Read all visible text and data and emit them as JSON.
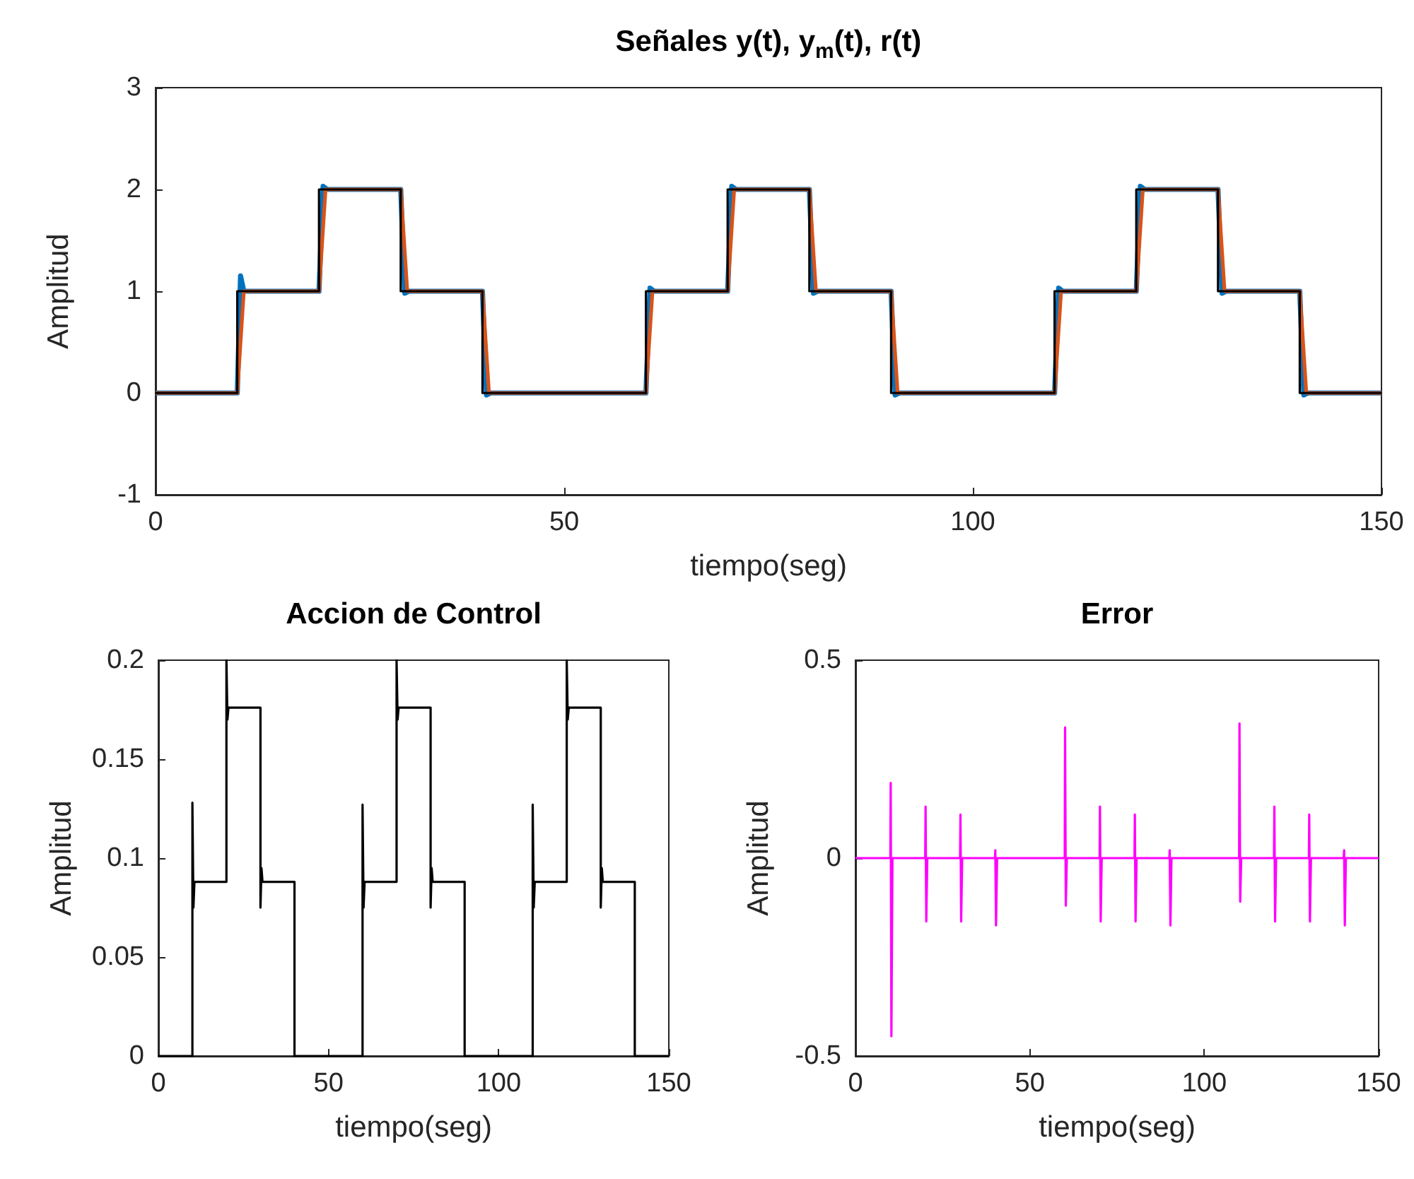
{
  "chart_data": [
    {
      "type": "line",
      "title": "Señales y(t), y$_{m}$(t), r(t)",
      "xlabel": "tiempo(seg)",
      "ylabel": "Amplitud",
      "xlim": [
        0,
        150
      ],
      "xticks": [
        0,
        50,
        100,
        150
      ],
      "ylim": [
        -1,
        3
      ],
      "yticks": [
        -1,
        0,
        1,
        2,
        3
      ],
      "grid": false,
      "marker": "none",
      "line_style": "solid",
      "series": [
        {
          "color": "#0072bd",
          "x": [
            0,
            10,
            10.4,
            10.8,
            20,
            20.5,
            21,
            30,
            30.5,
            31,
            40,
            40.5,
            41,
            60,
            60.5,
            61,
            70,
            70.5,
            71,
            80,
            80.5,
            81,
            90,
            90.5,
            91,
            110,
            110.5,
            111,
            120,
            120.5,
            121,
            130,
            130.5,
            131,
            140,
            140.5,
            141,
            150
          ],
          "values": [
            0,
            0,
            1.15,
            1,
            1,
            2.03,
            2,
            2,
            0.98,
            1,
            1,
            -0.02,
            0,
            0,
            1.03,
            1,
            1,
            2.03,
            2,
            2,
            0.98,
            1,
            1,
            -0.02,
            0,
            0,
            1.03,
            1,
            1,
            2.03,
            2,
            2,
            0.98,
            1,
            1,
            -0.02,
            0,
            0
          ]
        },
        {
          "color": "#d95319",
          "x": [
            0,
            10,
            10.8,
            20,
            20.8,
            30,
            30.8,
            40,
            40.8,
            60,
            60.8,
            70,
            70.8,
            80,
            80.8,
            90,
            90.8,
            110,
            110.8,
            120,
            120.8,
            130,
            130.8,
            140,
            140.8,
            150
          ],
          "values": [
            0,
            0,
            1,
            1,
            2,
            2,
            1,
            1,
            0,
            0,
            1,
            1,
            2,
            2,
            1,
            1,
            0,
            0,
            1,
            1,
            2,
            2,
            1,
            1,
            0,
            0
          ]
        },
        {
          "color": "#000000",
          "x": [
            0,
            10,
            10,
            20,
            20,
            30,
            30,
            40,
            40,
            60,
            60,
            70,
            70,
            80,
            80,
            90,
            90,
            110,
            110,
            120,
            120,
            130,
            130,
            140,
            140,
            150
          ],
          "values": [
            0,
            0,
            1,
            1,
            2,
            2,
            1,
            1,
            0,
            0,
            1,
            1,
            2,
            2,
            1,
            1,
            0,
            0,
            1,
            1,
            2,
            2,
            1,
            1,
            0,
            0
          ]
        }
      ]
    },
    {
      "type": "line",
      "title": "Accion de Control",
      "xlabel": "tiempo(seg)",
      "ylabel": "Amplitud",
      "xlim": [
        0,
        150
      ],
      "xticks": [
        0,
        50,
        100,
        150
      ],
      "ylim": [
        0,
        0.2
      ],
      "yticks": [
        0,
        0.05,
        0.1,
        0.15,
        0.2
      ],
      "grid": false,
      "marker": "none",
      "line_style": "solid",
      "series": [
        {
          "color": "#000000",
          "x": [
            0,
            10,
            10,
            10.3,
            10.6,
            20,
            20,
            20.3,
            20.6,
            30,
            30,
            30.3,
            30.6,
            40,
            40,
            60,
            60,
            60.3,
            60.6,
            70,
            70,
            70.3,
            70.6,
            80,
            80,
            80.3,
            80.6,
            90,
            90,
            110,
            110,
            110.3,
            110.6,
            120,
            120,
            120.3,
            120.6,
            130,
            130,
            130.3,
            130.6,
            140,
            140,
            150
          ],
          "values": [
            0,
            0,
            0.128,
            0.075,
            0.088,
            0.088,
            0.2,
            0.17,
            0.176,
            0.176,
            0.075,
            0.095,
            0.088,
            0.088,
            0,
            0,
            0.127,
            0.075,
            0.088,
            0.088,
            0.2,
            0.17,
            0.176,
            0.176,
            0.075,
            0.095,
            0.088,
            0.088,
            0,
            0,
            0.127,
            0.075,
            0.088,
            0.088,
            0.2,
            0.17,
            0.176,
            0.176,
            0.075,
            0.095,
            0.088,
            0.088,
            0,
            0
          ]
        }
      ]
    },
    {
      "type": "line",
      "title": "Error",
      "xlabel": "tiempo(seg)",
      "ylabel": "Amplitud",
      "xlim": [
        0,
        150
      ],
      "xticks": [
        0,
        50,
        100,
        150
      ],
      "ylim": [
        -0.5,
        0.5
      ],
      "yticks": [
        -0.5,
        0,
        0.5
      ],
      "grid": false,
      "marker": "none",
      "line_style": "solid",
      "series": [
        {
          "color": "#ff00ff",
          "x": [
            0,
            10,
            10.1,
            10.3,
            10.6,
            20,
            20.1,
            20.3,
            20.6,
            30,
            30.1,
            30.3,
            30.6,
            40,
            40.1,
            40.3,
            40.6,
            60,
            60.1,
            60.3,
            60.6,
            70,
            70.1,
            70.3,
            70.6,
            80,
            80.1,
            80.3,
            80.6,
            90,
            90.1,
            90.3,
            90.6,
            110,
            110.1,
            110.3,
            110.6,
            120,
            120.1,
            120.3,
            120.6,
            130,
            130.1,
            130.3,
            130.6,
            140,
            140.1,
            140.3,
            140.6,
            150
          ],
          "values": [
            0,
            0,
            0.19,
            -0.45,
            0,
            0,
            0.13,
            -0.16,
            0,
            0,
            0.11,
            -0.16,
            0,
            0,
            0.02,
            -0.17,
            0,
            0,
            0.33,
            -0.12,
            0,
            0,
            0.13,
            -0.16,
            0,
            0,
            0.11,
            -0.16,
            0,
            0,
            0.02,
            -0.17,
            0,
            0,
            0.34,
            -0.11,
            0,
            0,
            0.13,
            -0.16,
            0,
            0,
            0.11,
            -0.16,
            0,
            0,
            0.02,
            -0.17,
            0,
            0
          ]
        }
      ]
    }
  ]
}
